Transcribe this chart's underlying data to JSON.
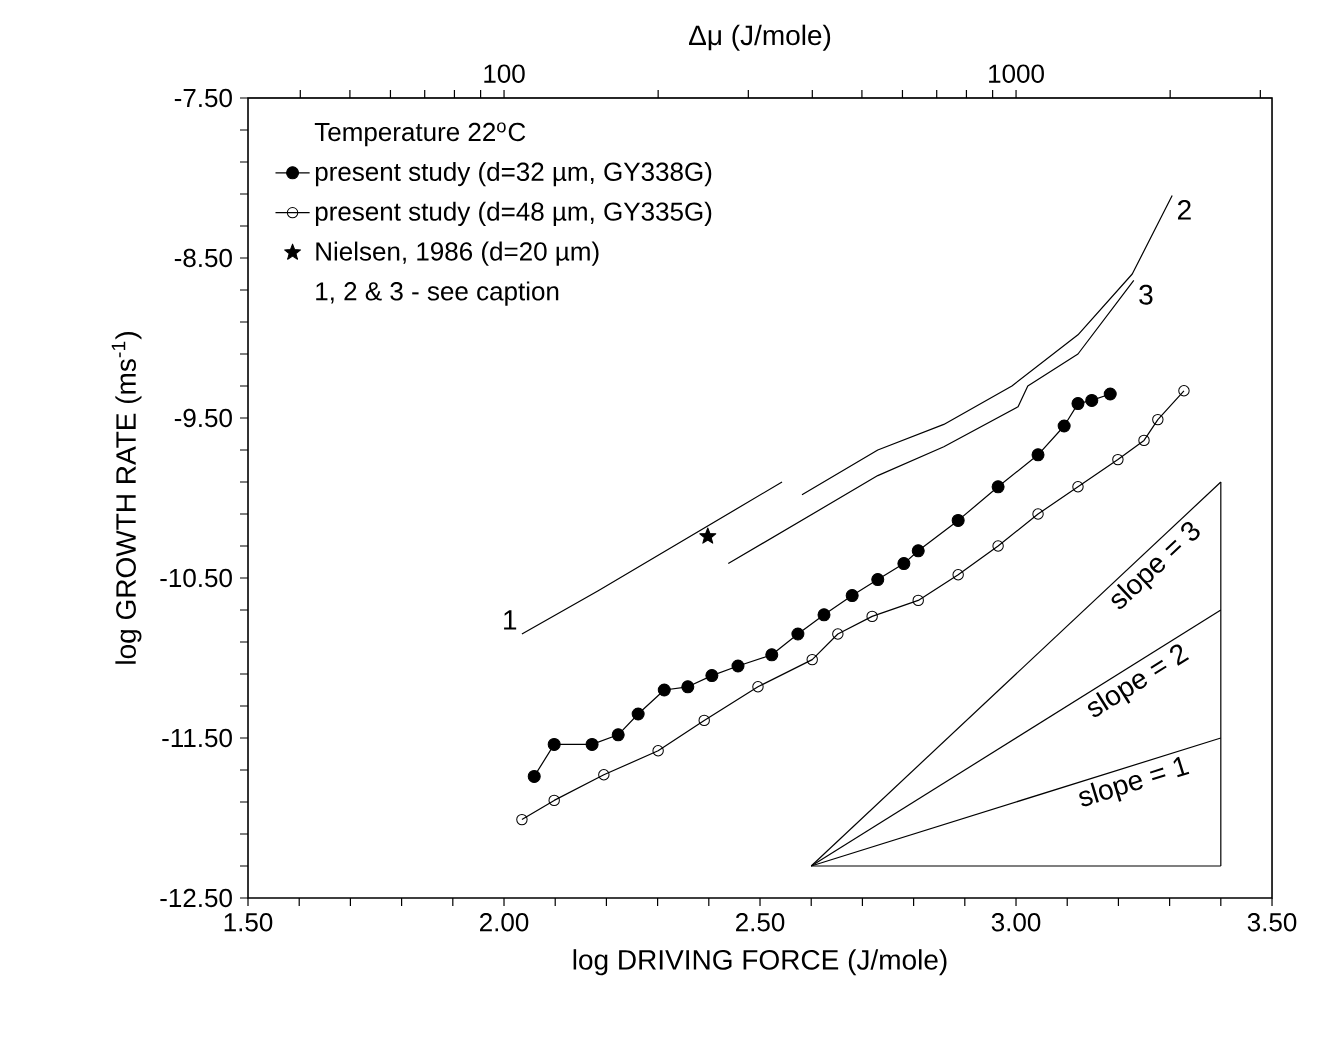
{
  "chart_data": {
    "type": "line",
    "xlabel": "log DRIVING FORCE (J/mole)",
    "ylabel": "log GROWTH RATE (ms$^{-1}$)",
    "x2label": "Δμ (J/mole)",
    "legend_title": "Temperature 22$^{o}$C",
    "legend": "top left",
    "log": "x2",
    "xlim": [
      1.5,
      3.5
    ],
    "ylim": [
      -12.5,
      -7.5
    ],
    "x2lim": [
      31.62,
      3162.28
    ],
    "xticks": [
      {
        "value": 1.5,
        "label": "1.50"
      },
      {
        "value": 1.6,
        "label": null
      },
      {
        "value": 1.7,
        "label": null
      },
      {
        "value": 1.8,
        "label": null
      },
      {
        "value": 1.9,
        "label": null
      },
      {
        "value": 2.0,
        "label": "2.00"
      },
      {
        "value": 2.1,
        "label": null
      },
      {
        "value": 2.2,
        "label": null
      },
      {
        "value": 2.3,
        "label": null
      },
      {
        "value": 2.4,
        "label": null
      },
      {
        "value": 2.5,
        "label": "2.50"
      },
      {
        "value": 2.6,
        "label": null
      },
      {
        "value": 2.7,
        "label": null
      },
      {
        "value": 2.8,
        "label": null
      },
      {
        "value": 2.9,
        "label": null
      },
      {
        "value": 3.0,
        "label": "3.00"
      },
      {
        "value": 3.1,
        "label": null
      },
      {
        "value": 3.2,
        "label": null
      },
      {
        "value": 3.3,
        "label": null
      },
      {
        "value": 3.4,
        "label": null
      },
      {
        "value": 3.5,
        "label": "3.50"
      }
    ],
    "yticks": [
      {
        "value": -12.5,
        "label": "-12.50"
      },
      {
        "value": -12.3,
        "label": null
      },
      {
        "value": -12.1,
        "label": null
      },
      {
        "value": -11.9,
        "label": null
      },
      {
        "value": -11.7,
        "label": null
      },
      {
        "value": -11.5,
        "label": "-11.50"
      },
      {
        "value": -11.3,
        "label": null
      },
      {
        "value": -11.1,
        "label": null
      },
      {
        "value": -10.9,
        "label": null
      },
      {
        "value": -10.7,
        "label": null
      },
      {
        "value": -10.5,
        "label": "-10.50"
      },
      {
        "value": -10.3,
        "label": null
      },
      {
        "value": -10.1,
        "label": null
      },
      {
        "value": -9.9,
        "label": null
      },
      {
        "value": -9.7,
        "label": null
      },
      {
        "value": -9.5,
        "label": "-9.50"
      },
      {
        "value": -9.3,
        "label": null
      },
      {
        "value": -9.1,
        "label": null
      },
      {
        "value": -8.9,
        "label": null
      },
      {
        "value": -8.7,
        "label": null
      },
      {
        "value": -8.5,
        "label": "-8.50"
      },
      {
        "value": -8.3,
        "label": null
      },
      {
        "value": -8.1,
        "label": null
      },
      {
        "value": -7.9,
        "label": null
      },
      {
        "value": -7.7,
        "label": null
      },
      {
        "value": -7.5,
        "label": "-7.50"
      }
    ],
    "x2ticks": [
      {
        "value": 40,
        "label": null
      },
      {
        "value": 50,
        "label": null
      },
      {
        "value": 60,
        "label": null
      },
      {
        "value": 70,
        "label": null
      },
      {
        "value": 80,
        "label": null
      },
      {
        "value": 90,
        "label": null
      },
      100,
      {
        "value": 200,
        "label": null
      },
      {
        "value": 300,
        "label": null
      },
      {
        "value": 400,
        "label": null
      },
      {
        "value": 500,
        "label": null
      },
      {
        "value": 600,
        "label": null
      },
      {
        "value": 700,
        "label": null
      },
      {
        "value": 800,
        "label": null
      },
      {
        "value": 900,
        "label": null
      },
      1000,
      {
        "value": 2000,
        "label": null
      },
      {
        "value": 3000,
        "label": null
      }
    ],
    "series": [
      {
        "name": "present study (d=32 µm, GY338G)",
        "marker": "circle",
        "color": "#000000",
        "x": [
          2.059,
          2.098,
          2.172,
          2.223,
          2.262,
          2.313,
          2.359,
          2.406,
          2.457,
          2.523,
          2.574,
          2.625,
          2.68,
          2.73,
          2.781,
          2.809,
          2.887,
          2.965,
          3.043,
          3.094,
          3.121,
          3.148,
          3.184
        ],
        "values": [
          -11.74,
          -11.54,
          -11.54,
          -11.48,
          -11.35,
          -11.2,
          -11.18,
          -11.11,
          -11.05,
          -10.98,
          -10.85,
          -10.73,
          -10.61,
          -10.51,
          -10.41,
          -10.33,
          -10.14,
          -9.93,
          -9.73,
          -9.55,
          -9.41,
          -9.39,
          -9.35
        ]
      },
      {
        "name": "present study (d=48 µm, GY335G)",
        "marker": "circle-open",
        "color": "#000000",
        "x": [
          2.035,
          2.098,
          2.195,
          2.301,
          2.391,
          2.496,
          2.602,
          2.652,
          2.719,
          2.809,
          2.887,
          2.965,
          3.043,
          3.121,
          3.199,
          3.25,
          3.277,
          3.328
        ],
        "values": [
          -12.01,
          -11.89,
          -11.73,
          -11.58,
          -11.39,
          -11.18,
          -11.01,
          -10.85,
          -10.74,
          -10.64,
          -10.48,
          -10.3,
          -10.1,
          -9.93,
          -9.76,
          -9.64,
          -9.51,
          -9.33
        ]
      },
      {
        "name": "Nielsen, 1986 (d=20 µm)",
        "type": "scatter",
        "marker": "star",
        "color": "#000000",
        "x": [
          2.398
        ],
        "values": [
          -10.24
        ]
      },
      {
        "marker": "none",
        "color": "#000000",
        "x": [
          2.035,
          2.184,
          2.543
        ],
        "values": [
          -10.85,
          -10.58,
          -9.9
        ]
      },
      {
        "marker": "none",
        "color": "#000000",
        "x": [
          2.582,
          2.73,
          2.859,
          2.992,
          3.121,
          3.227,
          3.305
        ],
        "values": [
          -9.98,
          -9.7,
          -9.54,
          -9.3,
          -8.98,
          -8.6,
          -8.11
        ]
      },
      {
        "marker": "none",
        "color": "#000000",
        "x": [
          2.438,
          2.73,
          2.859,
          3.004,
          3.023,
          3.121,
          3.23
        ],
        "values": [
          -10.41,
          -9.86,
          -9.68,
          -9.43,
          -9.3,
          -9.1,
          -8.64
        ]
      },
      {
        "marker": "none",
        "color": "#000000",
        "x": [
          2.6,
          3.4
        ],
        "values": [
          -12.3,
          -9.9
        ]
      },
      {
        "marker": "none",
        "color": "#000000",
        "x": [
          2.6,
          3.4
        ],
        "values": [
          -12.3,
          -10.7
        ]
      },
      {
        "marker": "none",
        "color": "#000000",
        "x": [
          2.6,
          3.4
        ],
        "values": [
          -12.3,
          -11.5
        ]
      },
      {
        "marker": "none",
        "color": "#000000",
        "x": [
          2.6,
          3.4
        ],
        "values": [
          -12.3,
          -12.3
        ]
      },
      {
        "marker": "none",
        "color": "#000000",
        "x": [
          3.4,
          3.4
        ],
        "values": [
          -12.3,
          -9.9
        ]
      }
    ],
    "annotations": [
      "1, 2 & 3 - see caption",
      {
        "text": "1",
        "x": 2.035,
        "y": -10.85
      },
      {
        "text": "2",
        "x": 3.305,
        "y": -8.11
      },
      {
        "text": "3",
        "x": 3.23,
        "y": -8.64
      },
      {
        "text": "slope = 3",
        "x": 3.25,
        "y": -10.35
      },
      {
        "text": "slope = 2",
        "x": 3.22,
        "y": -11.06
      },
      {
        "text": "slope = 1",
        "x": 3.22,
        "y": -11.68
      }
    ]
  }
}
